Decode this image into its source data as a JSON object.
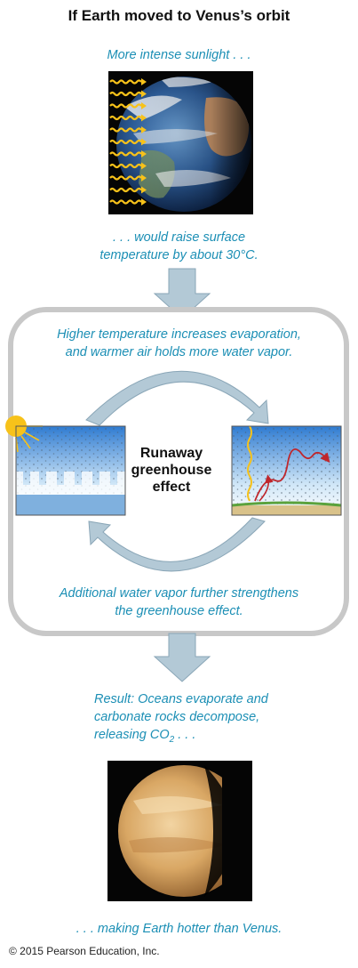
{
  "title": "If Earth moved to Venus’s orbit",
  "captions": {
    "sunlight": "More intense sunlight . . .",
    "raise_line1": ". . . would raise surface",
    "raise_line2": "temperature by about 30°C.",
    "evap_line1": "Higher temperature increases evaporation,",
    "evap_line2": "and warmer air holds more water vapor.",
    "vapor_line1": "Additional water vapor further strengthens",
    "vapor_line2": "the greenhouse effect.",
    "result_line1": "Result: Oceans evaporate and",
    "result_line2": "carbonate rocks decompose,",
    "result_line3_prefix": "releasing CO",
    "result_line3_sub": "2",
    "result_line3_suffix": " . . .",
    "final": ". . . making Earth hotter than Venus."
  },
  "cycle_label": {
    "line1": "Runaway",
    "line2": "greenhouse",
    "line3": "effect"
  },
  "copyright": "© 2015 Pearson Education, Inc.",
  "colors": {
    "caption": "#1c8fb5",
    "arrow_fill": "#b3c9d6",
    "arrow_stroke": "#8aa6b7",
    "frame": "#c8c8c8",
    "sun_ray": "#f7c21a",
    "ir_ray": "#c0262b"
  }
}
